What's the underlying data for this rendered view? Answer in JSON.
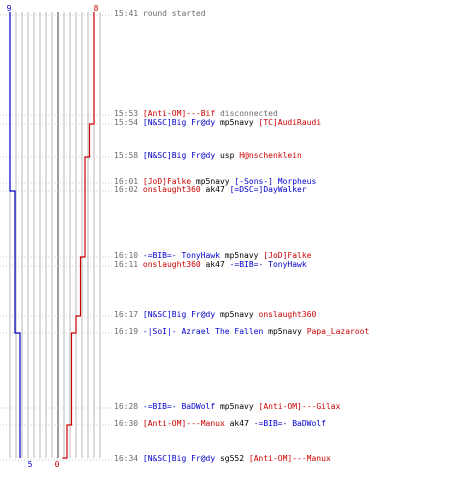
{
  "colors": {
    "blue": "#0000cc",
    "red": "#cc0000",
    "grid": "#b8b8b8",
    "grid_dark": "#7a7a7a",
    "time": "#6b6b6b"
  },
  "scores": {
    "blue_start": "9",
    "red_start": "8",
    "blue_end": "5",
    "red_end": "0"
  },
  "blue_steps": [
    9,
    9,
    9,
    9,
    9,
    8,
    8,
    8,
    8,
    7,
    7,
    7,
    7,
    7,
    6,
    6,
    5
  ],
  "red_steps": [
    8,
    8,
    7,
    7,
    6,
    6,
    5,
    5,
    4,
    4,
    3,
    3,
    2,
    2,
    1,
    1,
    0
  ],
  "events": [
    {
      "time": "15:41",
      "parts": [
        {
          "c": "msg",
          "t": "round started"
        }
      ]
    },
    {
      "time": "15:53",
      "parts": [
        {
          "c": "red",
          "t": "[Anti-OM]---Bif"
        },
        {
          "c": "msg",
          "t": " disconnected"
        }
      ]
    },
    {
      "time": "15:54",
      "parts": [
        {
          "c": "blu",
          "t": "[N&SC]Big Fr@dy"
        },
        {
          "c": "wpn",
          "t": " mp5navy "
        },
        {
          "c": "red",
          "t": "[TC]AudiRaudi"
        }
      ]
    },
    {
      "time": "15:58",
      "parts": [
        {
          "c": "blu",
          "t": "[N&SC]Big Fr@dy"
        },
        {
          "c": "wpn",
          "t": " usp "
        },
        {
          "c": "red",
          "t": "H@nschenklein"
        }
      ]
    },
    {
      "time": "16:01",
      "parts": [
        {
          "c": "red",
          "t": "[JoD]Falke"
        },
        {
          "c": "wpn",
          "t": " mp5navy "
        },
        {
          "c": "blu",
          "t": "[-Sons-] Morpheus"
        }
      ]
    },
    {
      "time": "16:02",
      "parts": [
        {
          "c": "red",
          "t": "onslaught360"
        },
        {
          "c": "wpn",
          "t": " ak47 "
        },
        {
          "c": "blu",
          "t": "[=DSC=]DayWalker"
        }
      ]
    },
    {
      "time": "16:10",
      "parts": [
        {
          "c": "blu",
          "t": "-=BIB=- TonyHawk"
        },
        {
          "c": "wpn",
          "t": " mp5navy "
        },
        {
          "c": "red",
          "t": "[JoD]Falke"
        }
      ]
    },
    {
      "time": "16:11",
      "parts": [
        {
          "c": "red",
          "t": "onslaught360"
        },
        {
          "c": "wpn",
          "t": " ak47 "
        },
        {
          "c": "blu",
          "t": "-=BIB=- TonyHawk"
        }
      ]
    },
    {
      "time": "16:17",
      "parts": [
        {
          "c": "blu",
          "t": "[N&SC]Big Fr@dy"
        },
        {
          "c": "wpn",
          "t": " mp5navy "
        },
        {
          "c": "red",
          "t": "onslaught360"
        }
      ]
    },
    {
      "time": "16:19",
      "parts": [
        {
          "c": "blu",
          "t": "-|SoI|- Azrael The Fallen"
        },
        {
          "c": "wpn",
          "t": " mp5navy "
        },
        {
          "c": "red",
          "t": "Papa_Lazaroot"
        }
      ]
    },
    {
      "time": "16:28",
      "parts": [
        {
          "c": "blu",
          "t": "-=BIB=- BaDWolf"
        },
        {
          "c": "wpn",
          "t": " mp5navy "
        },
        {
          "c": "red",
          "t": "[Anti-OM]---Gilax"
        }
      ]
    },
    {
      "time": "16:30",
      "parts": [
        {
          "c": "red",
          "t": "[Anti-OM]---Manux"
        },
        {
          "c": "wpn",
          "t": " ak47 "
        },
        {
          "c": "blu",
          "t": "-=BIB=- BaDWolf"
        }
      ]
    },
    {
      "time": "16:34",
      "parts": [
        {
          "c": "blu",
          "t": "[N&SC]Big Fr@dy"
        },
        {
          "c": "wpn",
          "t": " sg552 "
        },
        {
          "c": "red",
          "t": "[Anti-OM]---Manux"
        }
      ]
    }
  ]
}
